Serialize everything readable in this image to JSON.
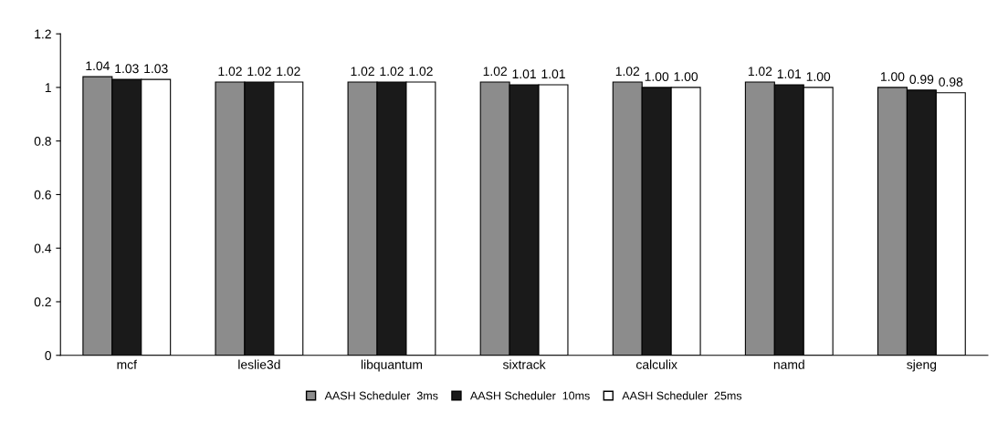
{
  "chart_data": {
    "type": "bar",
    "categories": [
      "mcf",
      "leslie3d",
      "libquantum",
      "sixtrack",
      "calculix",
      "namd",
      "sjeng"
    ],
    "series": [
      {
        "name": "AASH Scheduler  3ms",
        "color": "#8c8c8c",
        "values": [
          1.04,
          1.02,
          1.02,
          1.02,
          1.02,
          1.02,
          1.0
        ],
        "value_labels": [
          "1.04",
          "1.02",
          "1.02",
          "1.02",
          "1.02",
          "1.02",
          "1.00"
        ]
      },
      {
        "name": "AASH Scheduler  10ms",
        "color": "#1a1a1a",
        "values": [
          1.03,
          1.02,
          1.02,
          1.01,
          1.0,
          1.01,
          0.99
        ],
        "value_labels": [
          "1.03",
          "1.02",
          "1.02",
          "1.01",
          "1.00",
          "1.01",
          "0.99"
        ]
      },
      {
        "name": "AASH Scheduler  25ms",
        "color": "#ffffff",
        "values": [
          1.03,
          1.02,
          1.02,
          1.01,
          1.0,
          1.0,
          0.98
        ],
        "value_labels": [
          "1.03",
          "1.02",
          "1.02",
          "1.01",
          "1.00",
          "1.00",
          "0.98"
        ]
      }
    ],
    "ylim": [
      0,
      1.2
    ],
    "yticks": [
      0,
      0.2,
      0.4,
      0.6,
      0.8,
      1,
      1.2
    ],
    "grid": false,
    "legend": "bottom"
  }
}
